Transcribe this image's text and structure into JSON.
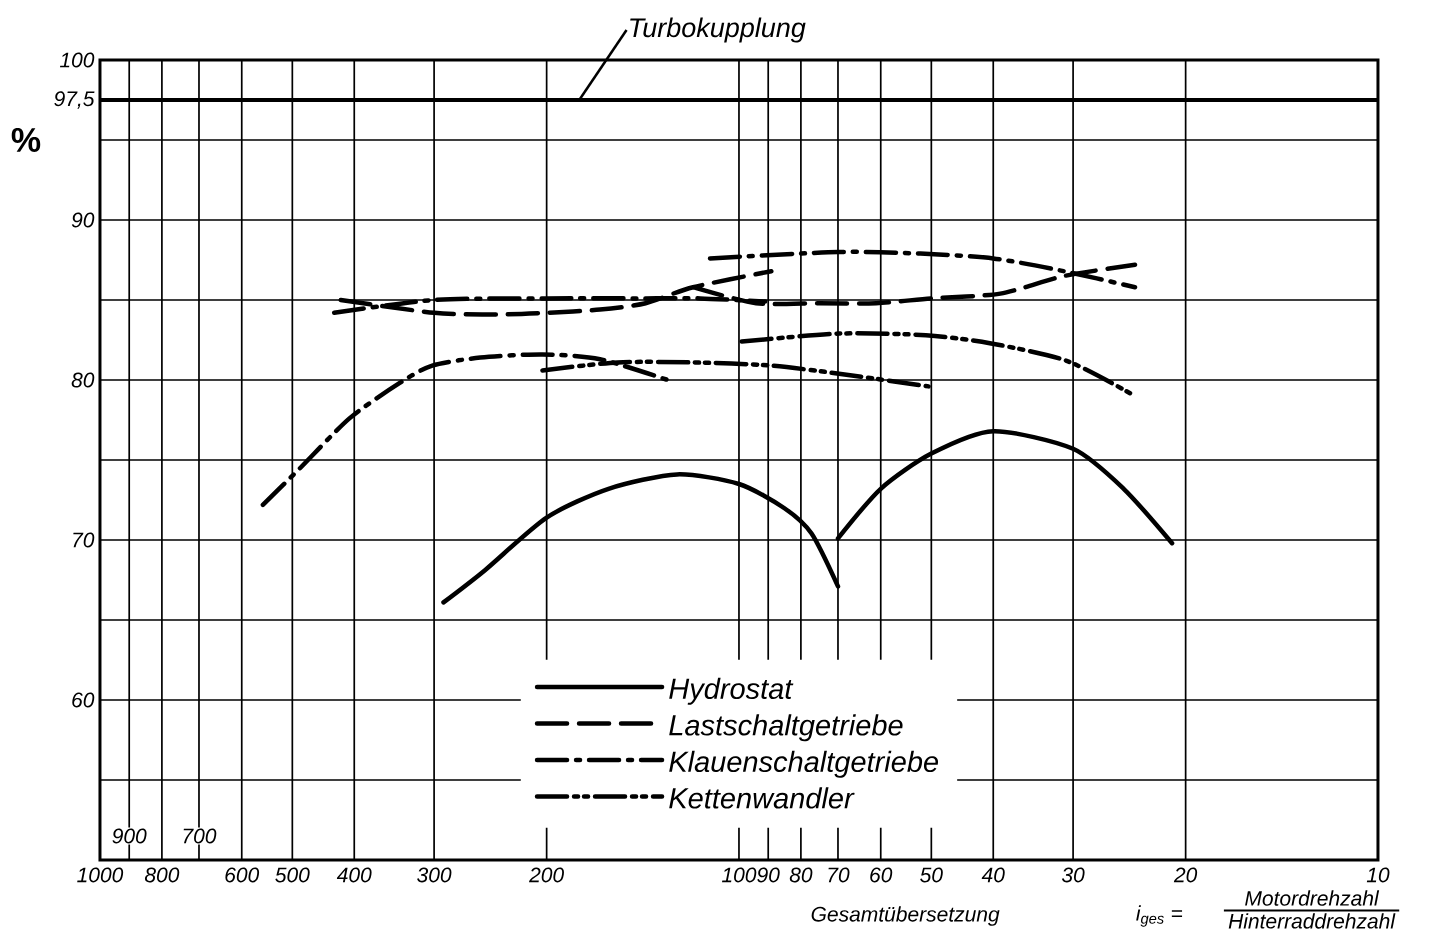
{
  "chart_data": {
    "type": "line",
    "xlabel": "Gesamtübersetzung",
    "ylabel": "%",
    "log": "x",
    "grid": true,
    "legend": "bottom",
    "xlim": [
      1000,
      10
    ],
    "ylim": [
      50,
      100
    ],
    "xticks": [
      1000,
      {
        "value": 900,
        "label": null
      },
      800,
      {
        "value": 700,
        "label": null
      },
      600,
      500,
      400,
      300,
      200,
      100,
      90,
      80,
      70,
      60,
      50,
      40,
      30,
      20,
      10
    ],
    "yticks": [
      {
        "value": 55,
        "label": null
      },
      60,
      {
        "value": 65,
        "label": null
      },
      70,
      {
        "value": 75,
        "label": null
      },
      80,
      {
        "value": 85,
        "label": null
      },
      90,
      {
        "value": 95,
        "label": null
      },
      {
        "value": 97.5,
        "label": "97,5"
      },
      100
    ],
    "ref_lines": [
      {
        "axis": "y",
        "value": 97.5,
        "label": "Turbokupplung",
        "color": "#000000",
        "line_style": "solid"
      }
    ],
    "annotations": [
      "i$_{ges}$ =",
      "Motordrehzahl",
      "Hinterraddrehzahl",
      {
        "text": "900",
        "x": 900
      },
      {
        "text": "700",
        "x": 700
      }
    ],
    "series": [
      {
        "name": "Hydrostat",
        "color": "#000000",
        "line_style": "solid",
        "x": [
          290,
          250,
          200,
          160,
          125,
          100,
          85,
          77,
          70,
          null,
          70,
          60,
          50,
          40,
          30,
          25,
          21
        ],
        "values": [
          66.1,
          68.1,
          71.4,
          73.2,
          74.1,
          73.5,
          72.0,
          70.4,
          67.1,
          null,
          70.1,
          73.2,
          75.4,
          76.8,
          75.7,
          73.2,
          69.8
        ]
      },
      {
        "name": "Lastschaltgetriebe",
        "color": "#000000",
        "line_style": "dashed",
        "x": [
          420,
          300,
          240,
          200,
          165,
          140,
          118,
          89,
          null,
          118,
          94,
          75,
          61,
          50,
          39,
          31,
          24
        ],
        "values": [
          85.0,
          84.2,
          84.1,
          84.2,
          84.4,
          84.8,
          85.8,
          86.8,
          null,
          85.8,
          84.8,
          84.8,
          84.8,
          85.1,
          85.4,
          86.5,
          87.2
        ]
      },
      {
        "name": "Klauenschaltgetriebe",
        "color": "#000000",
        "line_style": "dashdot",
        "x": [
          430,
          300,
          200,
          140,
          115,
          91,
          null,
          111,
          70,
          52,
          40,
          31,
          24,
          null,
          556,
          486,
          407,
          340,
          302,
          254,
          203,
          165,
          127
        ],
        "values": [
          84.2,
          85.0,
          85.1,
          85.1,
          85.1,
          84.9,
          null,
          87.6,
          88.0,
          87.9,
          87.6,
          86.8,
          85.8,
          null,
          72.2,
          74.5,
          77.6,
          79.8,
          80.9,
          81.4,
          81.6,
          81.3,
          79.9
        ]
      },
      {
        "name": "Kettenwandler",
        "color": "#000000",
        "line_style": "dashdotdot",
        "x": [
          203,
          155,
          119,
          89,
          67,
          50.5,
          null,
          99,
          70,
          51,
          40.5,
          30.7,
          24
        ],
        "values": [
          80.6,
          81.1,
          81.1,
          80.9,
          80.3,
          79.6,
          null,
          82.4,
          82.9,
          82.8,
          82.3,
          81.2,
          79.0
        ]
      }
    ]
  }
}
